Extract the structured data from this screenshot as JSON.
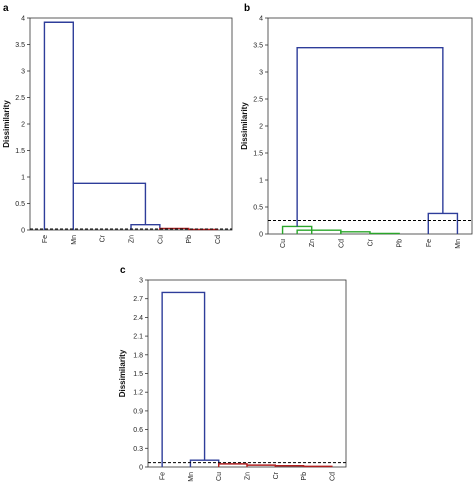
{
  "chart_data": [
    {
      "type": "dendrogram",
      "panel_label": "a",
      "ylabel": "Dissimilarity",
      "ylim": [
        0,
        4
      ],
      "yticks": [
        "0",
        "0.5",
        "1",
        "1.5",
        "2",
        "2.5",
        "3",
        "3.5",
        "4"
      ],
      "leaves": [
        "Fe",
        "Mn",
        "Cr",
        "Zn",
        "Cu",
        "Pb",
        "Cd"
      ],
      "truncation_level": 0.02,
      "links": [
        {
          "x1": 0,
          "x2": 1,
          "h": 3.92,
          "child_h1": 0,
          "child_h2": 0.88,
          "color": "#2e3d9a"
        },
        {
          "x1": 1,
          "x2": 3.5,
          "h": 0.88,
          "child_h1": 0,
          "child_h2": 0.1,
          "color": "#2e3d9a"
        },
        {
          "x1": 3,
          "x2": 4,
          "h": 0.1,
          "child_h1": 0,
          "child_h2": 0.03,
          "color": "#2e3d9a"
        },
        {
          "x1": 4,
          "x2": 5,
          "h": 0.03,
          "child_h1": 0,
          "child_h2": 0.01,
          "color": "#b02020"
        },
        {
          "x1": 5,
          "x2": 6,
          "h": 0.01,
          "child_h1": 0,
          "child_h2": 0,
          "color": "#b02020"
        }
      ]
    },
    {
      "type": "dendrogram",
      "panel_label": "b",
      "ylabel": "Dissimilarity",
      "ylim": [
        0,
        4
      ],
      "yticks": [
        "0",
        "0.5",
        "1",
        "1.5",
        "2",
        "2.5",
        "3",
        "3.5",
        "4"
      ],
      "leaves": [
        "Cu",
        "Zn",
        "Cd",
        "Cr",
        "Pb",
        "Fe",
        "Mn"
      ],
      "truncation_level": 0.25,
      "links": [
        {
          "x1": 0,
          "x2": 1,
          "h": 0.14,
          "child_h1": 0,
          "child_h2": 0,
          "color": "#2aa62a"
        },
        {
          "x1": 0.5,
          "x2": 2,
          "h": 0.07,
          "child_h1": 0,
          "child_h2": 0,
          "color": "#2aa62a"
        },
        {
          "x1": 2,
          "x2": 3,
          "h": 0.04,
          "child_h1": 0,
          "child_h2": 0,
          "color": "#2aa62a"
        },
        {
          "x1": 3,
          "x2": 4,
          "h": 0.01,
          "child_h1": 0,
          "child_h2": 0,
          "color": "#2aa62a"
        },
        {
          "x1": 5,
          "x2": 6,
          "h": 0.38,
          "child_h1": 0,
          "child_h2": 0,
          "color": "#2e3d9a"
        },
        {
          "x1": 0.5,
          "x2": 5.5,
          "h": 3.45,
          "child_h1": 0.14,
          "child_h2": 0.38,
          "color": "#2e3d9a"
        }
      ]
    },
    {
      "type": "dendrogram",
      "panel_label": "c",
      "ylabel": "Dissimilarity",
      "ylim": [
        0,
        3
      ],
      "yticks": [
        "0",
        "0.3",
        "0.6",
        "0.9",
        "1.2",
        "1.5",
        "1.8",
        "2.1",
        "2.4",
        "2.7",
        "3"
      ],
      "leaves": [
        "Fe",
        "Mn",
        "Cu",
        "Zn",
        "Cr",
        "Pb",
        "Cd"
      ],
      "truncation_level": 0.07,
      "links": [
        {
          "x1": 0,
          "x2": 1.5,
          "h": 2.8,
          "child_h1": 0,
          "child_h2": 0.11,
          "color": "#2e3d9a"
        },
        {
          "x1": 1,
          "x2": 2,
          "h": 0.11,
          "child_h1": 0,
          "child_h2": 0.05,
          "color": "#2e3d9a"
        },
        {
          "x1": 2,
          "x2": 3,
          "h": 0.05,
          "child_h1": 0,
          "child_h2": 0.03,
          "color": "#b02020"
        },
        {
          "x1": 3,
          "x2": 4,
          "h": 0.03,
          "child_h1": 0,
          "child_h2": 0.02,
          "color": "#b02020"
        },
        {
          "x1": 4,
          "x2": 5,
          "h": 0.02,
          "child_h1": 0,
          "child_h2": 0.01,
          "color": "#b02020"
        },
        {
          "x1": 5,
          "x2": 6,
          "h": 0.01,
          "child_h1": 0,
          "child_h2": 0,
          "color": "#b02020"
        }
      ]
    }
  ]
}
